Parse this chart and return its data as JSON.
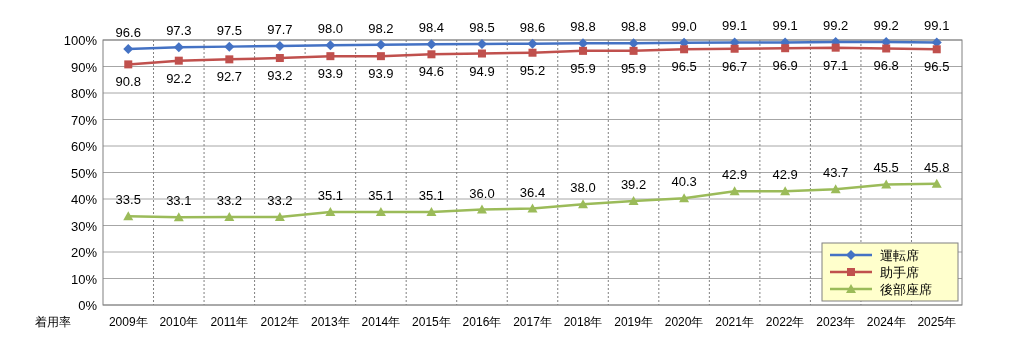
{
  "chart_data": {
    "type": "line",
    "ylabel": "着用率",
    "categories": [
      "2009年",
      "2010年",
      "2011年",
      "2012年",
      "2013年",
      "2014年",
      "2015年",
      "2016年",
      "2017年",
      "2018年",
      "2019年",
      "2020年",
      "2021年",
      "2022年",
      "2023年",
      "2024年",
      "2025年"
    ],
    "series": [
      {
        "name": "運転席",
        "color": "#4472c4",
        "marker": "diamond",
        "values": [
          96.6,
          97.3,
          97.5,
          97.7,
          98.0,
          98.2,
          98.4,
          98.5,
          98.6,
          98.8,
          98.8,
          99.0,
          99.1,
          99.1,
          99.2,
          99.2,
          99.1
        ],
        "value_labels": [
          "96.6",
          "97.3",
          "97.5",
          "97.7",
          "98.0",
          "98.2",
          "98.4",
          "98.5",
          "98.6",
          "98.8",
          "98.8",
          "99.0",
          "99.1",
          "99.1",
          "99.2",
          "99.2",
          "99.1"
        ]
      },
      {
        "name": "助手席",
        "color": "#c0504d",
        "marker": "square",
        "values": [
          90.8,
          92.2,
          92.7,
          93.2,
          93.9,
          93.9,
          94.6,
          94.9,
          95.2,
          95.9,
          95.9,
          96.5,
          96.7,
          96.9,
          97.1,
          96.8,
          96.5
        ],
        "value_labels": [
          "90.8",
          "92.2",
          "92.7",
          "93.2",
          "93.9",
          "93.9",
          "94.6",
          "94.9",
          "95.2",
          "95.9",
          "95.9",
          "96.5",
          "96.7",
          "96.9",
          "97.1",
          "96.8",
          "96.5"
        ]
      },
      {
        "name": "後部座席",
        "color": "#9bbb59",
        "marker": "triangle",
        "values": [
          33.5,
          33.1,
          33.2,
          33.2,
          35.1,
          35.1,
          35.1,
          36.0,
          36.4,
          38.0,
          39.2,
          40.3,
          42.9,
          42.9,
          43.7,
          45.5,
          45.8
        ],
        "value_labels": [
          "33.5",
          "33.1",
          "33.2",
          "33.2",
          "35.1",
          "35.1",
          "35.1",
          "36.0",
          "36.4",
          "38.0",
          "39.2",
          "40.3",
          "42.9",
          "42.9",
          "43.7",
          "45.5",
          "45.8"
        ]
      }
    ],
    "ylim": [
      0,
      100
    ],
    "yticks": [
      {
        "value": 0,
        "label": "0%"
      },
      {
        "value": 10,
        "label": "10%"
      },
      {
        "value": 20,
        "label": "20%"
      },
      {
        "value": 30,
        "label": "30%"
      },
      {
        "value": 40,
        "label": "40%"
      },
      {
        "value": 50,
        "label": "50%"
      },
      {
        "value": 60,
        "label": "60%"
      },
      {
        "value": 70,
        "label": "70%"
      },
      {
        "value": 80,
        "label": "80%"
      },
      {
        "value": 90,
        "label": "90%"
      },
      {
        "value": 100,
        "label": "100%"
      }
    ],
    "grid": true,
    "legend": "bottom right",
    "line_style": "solid"
  }
}
